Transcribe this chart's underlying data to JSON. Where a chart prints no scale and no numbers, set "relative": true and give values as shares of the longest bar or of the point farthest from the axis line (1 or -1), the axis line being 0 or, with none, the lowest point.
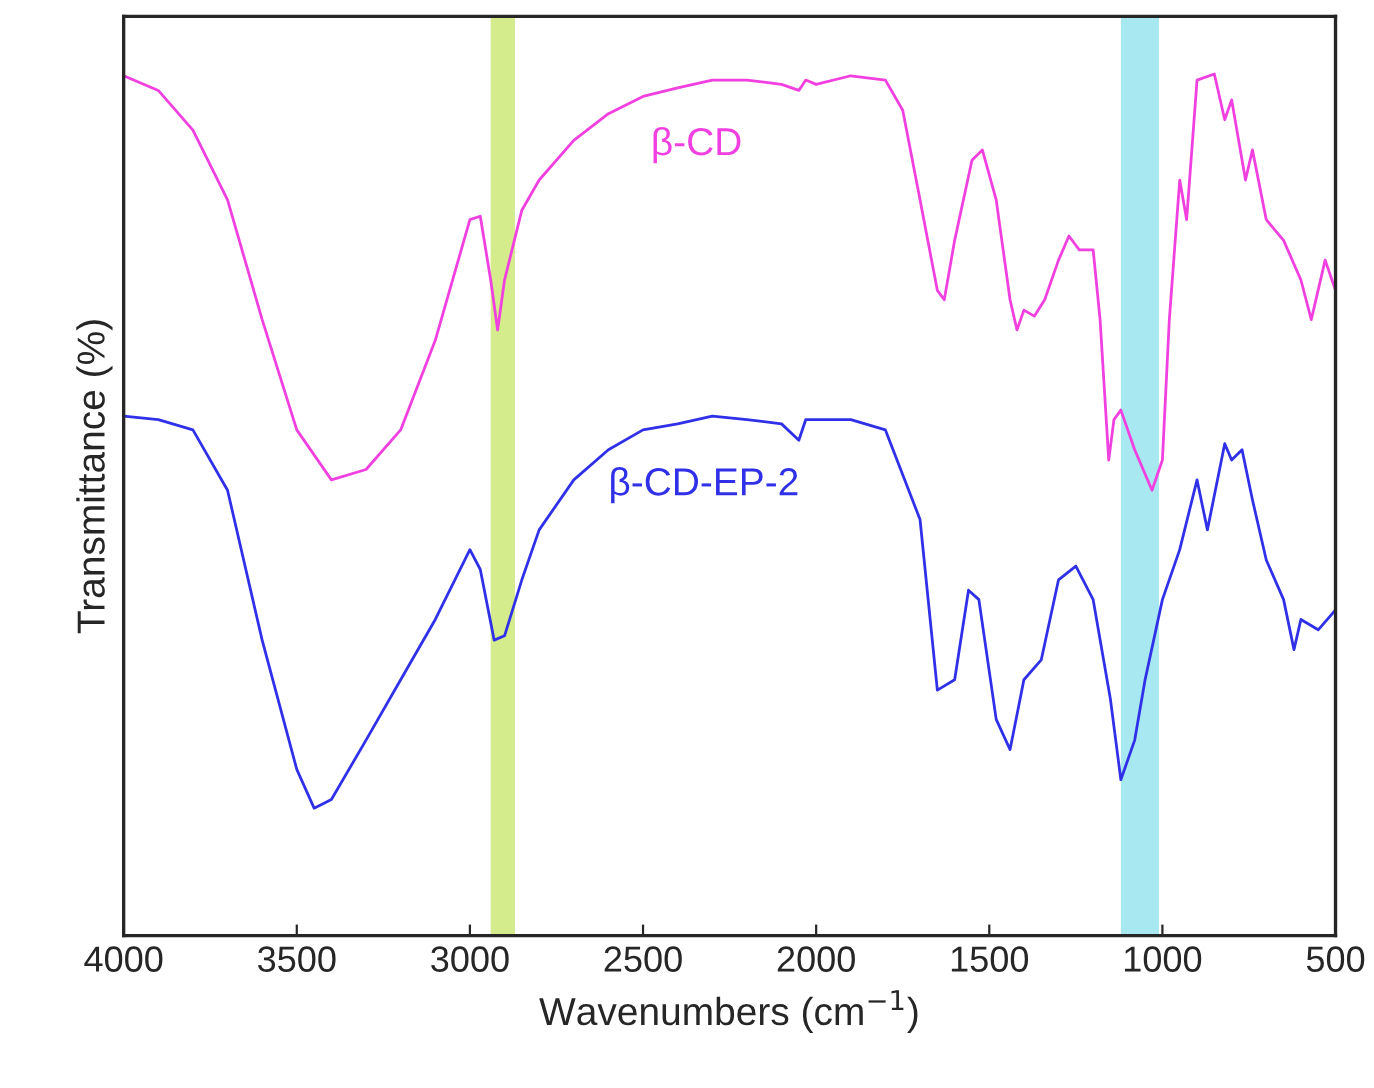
{
  "chart_data": {
    "type": "line",
    "relative": true,
    "xlabel": "Wavenumbers (cm$^{−1}$)",
    "ylabel": "Transmittance (%)",
    "xlim": [
      4000,
      500
    ],
    "xticks": [
      4000,
      3500,
      3000,
      2500,
      2000,
      1500,
      1000,
      500
    ],
    "grid": false,
    "bands": [
      {
        "axis": "x",
        "from": 2940,
        "to": 2870,
        "color": "#d4ec8c"
      },
      {
        "axis": "x",
        "from": 1120,
        "to": 1010,
        "color": "#a8e8f0"
      }
    ],
    "series": [
      {
        "name": "β-CD",
        "color": "#f040e0",
        "x": [
          4000,
          3900,
          3800,
          3700,
          3600,
          3500,
          3400,
          3300,
          3200,
          3100,
          3000,
          2970,
          2940,
          2920,
          2900,
          2850,
          2800,
          2700,
          2600,
          2500,
          2400,
          2300,
          2200,
          2100,
          2050,
          2030,
          2000,
          1900,
          1800,
          1750,
          1700,
          1650,
          1630,
          1600,
          1550,
          1520,
          1480,
          1440,
          1420,
          1400,
          1370,
          1340,
          1300,
          1270,
          1240,
          1200,
          1180,
          1155,
          1140,
          1120,
          1080,
          1030,
          1000,
          980,
          950,
          930,
          900,
          850,
          820,
          800,
          760,
          740,
          700,
          650,
          600,
          570,
          530,
          500
        ],
        "values": [
          0.998,
          0.981,
          0.935,
          0.854,
          0.715,
          0.587,
          0.529,
          0.541,
          0.587,
          0.691,
          0.831,
          0.835,
          0.761,
          0.703,
          0.761,
          0.842,
          0.877,
          0.923,
          0.954,
          0.974,
          0.984,
          0.993,
          0.993,
          0.988,
          0.981,
          0.993,
          0.988,
          0.998,
          0.993,
          0.958,
          0.854,
          0.749,
          0.738,
          0.807,
          0.9,
          0.912,
          0.854,
          0.738,
          0.703,
          0.726,
          0.719,
          0.738,
          0.784,
          0.812,
          0.796,
          0.796,
          0.715,
          0.552,
          0.599,
          0.61,
          0.564,
          0.517,
          0.552,
          0.715,
          0.877,
          0.831,
          0.993,
          1,
          0.947,
          0.97,
          0.877,
          0.912,
          0.831,
          0.807,
          0.761,
          0.715,
          0.784,
          0.749
        ]
      },
      {
        "name": "β-CD-EP-2",
        "color": "#3030e8",
        "x": [
          4000,
          3900,
          3800,
          3700,
          3600,
          3500,
          3450,
          3400,
          3300,
          3200,
          3100,
          3000,
          2970,
          2930,
          2900,
          2850,
          2800,
          2700,
          2600,
          2500,
          2400,
          2300,
          2200,
          2100,
          2050,
          2030,
          2000,
          1900,
          1800,
          1700,
          1650,
          1600,
          1560,
          1530,
          1480,
          1440,
          1400,
          1350,
          1300,
          1250,
          1200,
          1150,
          1120,
          1080,
          1050,
          1000,
          950,
          900,
          870,
          820,
          800,
          770,
          740,
          700,
          650,
          620,
          600,
          550,
          500
        ],
        "values": [
          0.603,
          0.599,
          0.587,
          0.517,
          0.343,
          0.193,
          0.148,
          0.158,
          0.227,
          0.297,
          0.367,
          0.448,
          0.425,
          0.343,
          0.348,
          0.413,
          0.471,
          0.529,
          0.564,
          0.587,
          0.594,
          0.603,
          0.599,
          0.594,
          0.575,
          0.599,
          0.599,
          0.599,
          0.587,
          0.483,
          0.285,
          0.297,
          0.401,
          0.39,
          0.251,
          0.216,
          0.297,
          0.32,
          0.413,
          0.429,
          0.39,
          0.274,
          0.181,
          0.227,
          0.297,
          0.39,
          0.448,
          0.529,
          0.471,
          0.571,
          0.552,
          0.564,
          0.506,
          0.436,
          0.39,
          0.332,
          0.367,
          0.355,
          0.378
        ]
      }
    ]
  }
}
